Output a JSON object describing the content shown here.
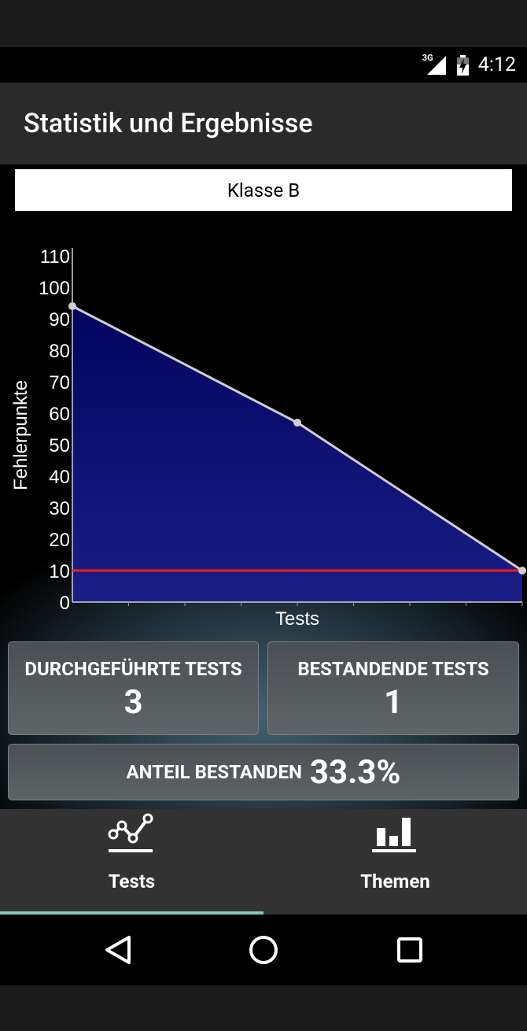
{
  "status_bar": {
    "network": "3G",
    "time": "4:12"
  },
  "app_bar": {
    "title": "Statistik und Ergebnisse"
  },
  "selector": {
    "value": "Klasse B"
  },
  "chart_data": {
    "type": "area",
    "x": [
      1,
      2,
      3
    ],
    "values": [
      94,
      57,
      10
    ],
    "ylabel": "Fehlerpunkte",
    "xlabel": "Tests",
    "ylim": [
      0,
      110
    ],
    "yticks": [
      0,
      10,
      20,
      30,
      40,
      50,
      60,
      70,
      80,
      90,
      100,
      110
    ],
    "threshold": 10,
    "colors": {
      "area": "#0a0b6b",
      "line": "#cfcfcf",
      "threshold": "#ff1a1a"
    }
  },
  "stats": {
    "performed_label": "DURCHGEFÜHRTE TESTS",
    "performed_value": "3",
    "passed_label": "BESTANDENDE TESTS",
    "passed_value": "1",
    "share_label": "ANTEIL BESTANDEN",
    "share_value": "33.3%"
  },
  "tabs": [
    {
      "label": "Tests",
      "icon": "line-chart-icon",
      "active": true
    },
    {
      "label": "Themen",
      "icon": "bar-chart-icon",
      "active": false
    }
  ],
  "nav": {
    "icons": [
      "back-icon",
      "home-icon",
      "recents-icon"
    ]
  }
}
